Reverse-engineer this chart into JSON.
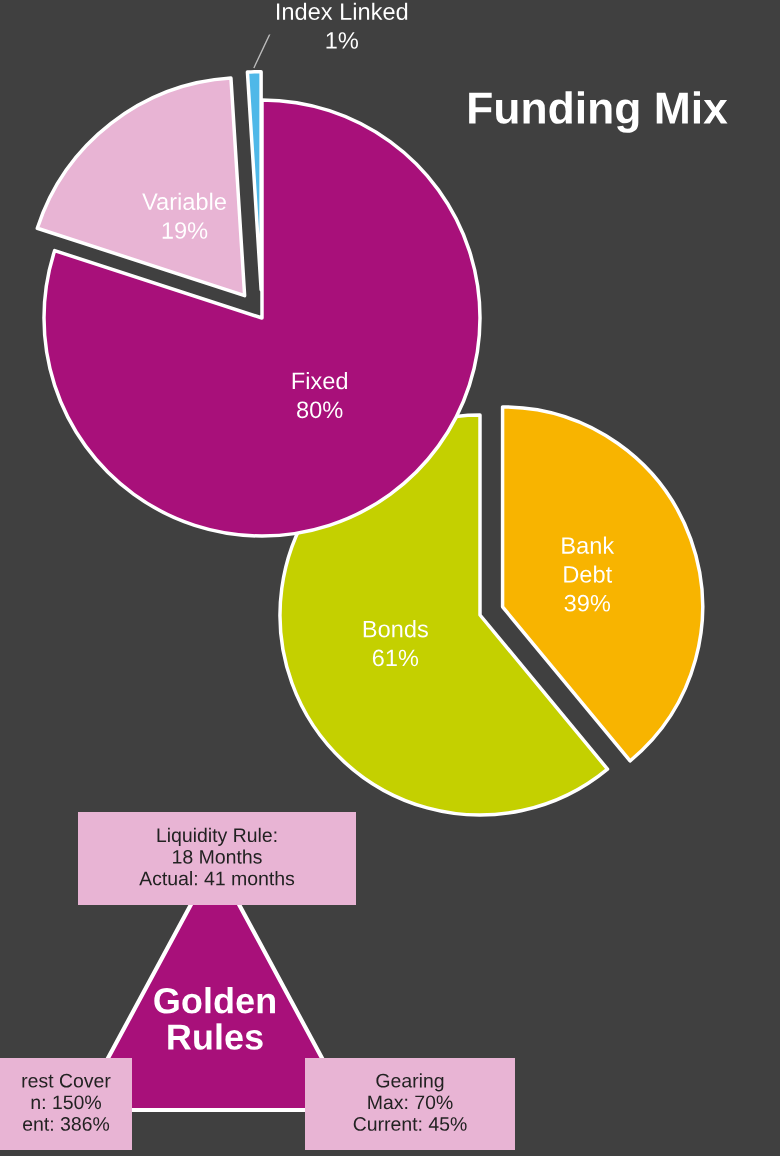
{
  "chart_data": [
    {
      "type": "pie",
      "title": "Funding Mix",
      "categories": [
        "Fixed",
        "Variable",
        "Index Linked"
      ],
      "values": [
        80,
        19,
        1
      ],
      "colors": [
        "#a8107a",
        "#e8b4d4",
        "#4fb8e8"
      ],
      "value_labels": [
        "80%",
        "19%",
        "1%"
      ]
    },
    {
      "type": "pie",
      "categories": [
        "Bank\nDebt",
        "Bonds"
      ],
      "values": [
        39,
        61
      ],
      "colors": [
        "#f8b400",
        "#c4d000"
      ],
      "value_labels": [
        "39%",
        "61%"
      ]
    },
    {
      "type": "other",
      "title": "Golden Rules",
      "annotations": [
        "Liquidity Rule:\n18 Months\nActual: 41 months",
        "rest Cover\nn: 150%\nent: 386%",
        "Gearing\nMax: 70%\nCurrent: 45%"
      ]
    }
  ]
}
